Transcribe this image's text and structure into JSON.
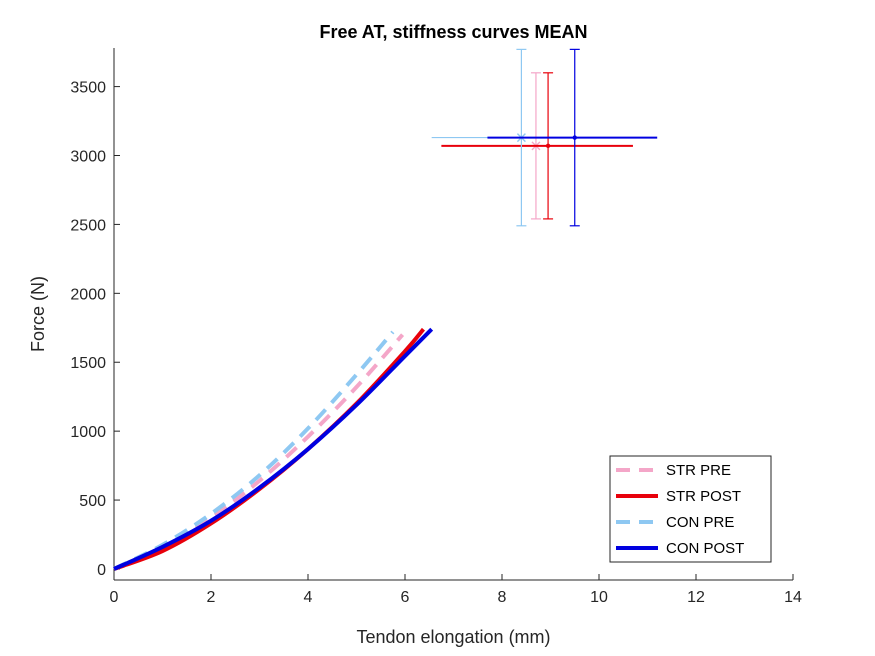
{
  "chart_data": {
    "type": "line",
    "title": "Free AT, stiffness curves MEAN",
    "xlabel": "Tendon elongation (mm)",
    "ylabel": "Force (N)",
    "xlim": [
      0,
      14
    ],
    "ylim": [
      -80,
      3780
    ],
    "xticks": [
      0,
      2,
      4,
      6,
      8,
      10,
      12,
      14
    ],
    "yticks": [
      0,
      500,
      1000,
      1500,
      2000,
      2500,
      3000,
      3500
    ],
    "grid": false,
    "legend_position": "bottom-right",
    "series": [
      {
        "name": "STR PRE",
        "color": "#f4a6c8",
        "dash": "dashed",
        "x": [
          0,
          1,
          2,
          3,
          4,
          5,
          5.95
        ],
        "y": [
          0,
          150,
          370,
          640,
          960,
          1320,
          1700
        ]
      },
      {
        "name": "STR POST",
        "color": "#e8000b",
        "dash": "solid",
        "x": [
          0,
          1,
          2,
          3,
          4,
          5,
          6,
          6.38
        ],
        "y": [
          0,
          130,
          330,
          580,
          870,
          1200,
          1580,
          1740
        ]
      },
      {
        "name": "CON PRE",
        "color": "#8ec8f2",
        "dash": "dashed",
        "x": [
          0,
          1,
          2,
          3,
          4,
          5,
          5.75
        ],
        "y": [
          0,
          175,
          400,
          680,
          1020,
          1410,
          1720
        ]
      },
      {
        "name": "CON POST",
        "color": "#0000e0",
        "dash": "solid",
        "x": [
          0,
          1,
          2,
          3,
          4,
          5,
          6,
          6.55
        ],
        "y": [
          0,
          160,
          350,
          590,
          870,
          1190,
          1545,
          1740
        ]
      }
    ],
    "error_markers": [
      {
        "name": "STR PRE",
        "marker": "x",
        "color": "#f4a6c8",
        "x": 8.7,
        "y": 3070,
        "xerr": [
          8.7,
          8.7
        ],
        "yerr": [
          2540,
          3600
        ]
      },
      {
        "name": "STR POST",
        "marker": "dot",
        "color": "#e8000b",
        "x": 8.95,
        "y": 3070,
        "xerr": [
          6.75,
          10.7
        ],
        "yerr": [
          2540,
          3600
        ]
      },
      {
        "name": "CON PRE",
        "marker": "x",
        "color": "#8ec8f2",
        "x": 8.4,
        "y": 3130,
        "xerr": [
          6.55,
          8.4
        ],
        "yerr": [
          2490,
          3770
        ]
      },
      {
        "name": "CON POST",
        "marker": "dot",
        "color": "#0000e0",
        "x": 9.5,
        "y": 3130,
        "xerr": [
          7.7,
          11.2
        ],
        "yerr": [
          2490,
          3770
        ]
      }
    ]
  }
}
